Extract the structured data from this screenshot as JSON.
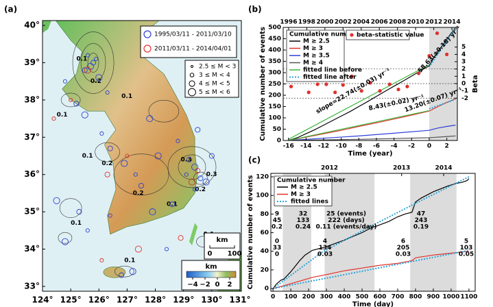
{
  "panel_labels": [
    "(a)",
    "(b)",
    "(c)"
  ],
  "map": {
    "xlim": [
      124,
      131.05
    ],
    "ylim": [
      32.87,
      40.13
    ],
    "xticks": [
      {
        "value": 124,
        "label": "124°"
      },
      {
        "value": 125,
        "label": "125°"
      },
      {
        "value": 126,
        "label": "126°"
      },
      {
        "value": 127,
        "label": "127°"
      },
      {
        "value": 128,
        "label": "128°"
      },
      {
        "value": 129,
        "label": "129°"
      },
      {
        "value": 130,
        "label": "130°"
      },
      {
        "value": 131,
        "label": "131°"
      }
    ],
    "yticks": [
      {
        "value": 33,
        "label": "33°"
      },
      {
        "value": 34,
        "label": "34°"
      },
      {
        "value": 35,
        "label": "35°"
      },
      {
        "value": 36,
        "label": "36°"
      },
      {
        "value": 37,
        "label": "37°"
      },
      {
        "value": 38,
        "label": "38°"
      },
      {
        "value": 39,
        "label": "39°"
      },
      {
        "value": 40,
        "label": "40°"
      }
    ],
    "series": [
      {
        "name": "1995/03/11 - 2011/03/10",
        "color": "#2b3fd6",
        "lon": [
          125.6,
          125.8,
          125.7,
          125.9,
          125.5,
          126.0,
          126.3,
          125.2,
          125.5,
          126.1,
          126.4,
          126.9,
          127.3,
          127.5,
          128.1,
          128.8,
          129.2,
          129.4,
          129.1,
          129.6,
          129.8,
          129.4,
          128.6,
          127.9,
          126.4,
          125.3,
          124.8,
          125.6,
          126.8,
          127.2,
          128.4,
          129.5,
          127.8,
          124.8,
          130.0,
          124.5
        ],
        "lat": [
          39.2,
          39.0,
          38.9,
          39.1,
          38.8,
          38.6,
          38.2,
          37.9,
          37.6,
          37.1,
          36.7,
          36.3,
          36.0,
          35.7,
          36.5,
          36.9,
          36.4,
          36.2,
          36.0,
          35.9,
          35.8,
          35.6,
          35.2,
          35.0,
          34.9,
          35.0,
          34.2,
          34.5,
          33.3,
          33.4,
          34.0,
          37.2,
          37.5,
          38.5,
          36.5,
          35.3
        ]
      },
      {
        "name": "2011/03/11 - 2014/04/01",
        "color": "#e0302a",
        "lon": [
          125.0,
          126.3,
          125.6,
          127.0,
          129.5,
          129.3,
          124.4,
          128.9,
          127.4,
          126.1
        ],
        "lat": [
          38.0,
          36.0,
          38.8,
          36.5,
          36.1,
          35.8,
          37.5,
          34.3,
          34.0,
          33.7
        ]
      }
    ],
    "magnitude_legend": [
      "2.5 ≤ M < 3",
      "3 ≤ M < 4",
      "4 ≤ M < 5",
      "5 ≤ M < 6"
    ],
    "contour_labels": [
      "0.1",
      "0.2",
      "0.1",
      "0.1",
      "0.2",
      "0.3",
      "0.1",
      "0.2",
      "0.3",
      "0.2",
      "0.1",
      "0.1",
      "0.1",
      "0.1"
    ],
    "scale_bar": {
      "title": "km",
      "ticks": [
        "0",
        "100"
      ]
    },
    "colorbar": {
      "title": "km",
      "lim": [
        -5,
        3
      ],
      "ticks": [
        {
          "value": -4,
          "label": "−4"
        },
        {
          "value": -2,
          "label": "−2"
        },
        0,
        2
      ]
    }
  },
  "chart_data": [
    {
      "type": "line",
      "xlabel": "Time (year)",
      "ylabel": "Cumulative number of events",
      "y2label": "Beta",
      "xlim": [
        -16.6,
        3.2
      ],
      "xticks": [
        -16,
        -14,
        -12,
        -10,
        -8,
        -6,
        -4,
        -2,
        0,
        2
      ],
      "x2lim": [
        1995.4,
        2014.6
      ],
      "x2ticks": [
        1996,
        1998,
        2000,
        2002,
        2004,
        2006,
        2008,
        2010,
        2012,
        2014
      ],
      "ylim": [
        0,
        500
      ],
      "yticks": [
        0,
        50,
        100,
        150,
        200,
        250,
        300,
        350,
        400,
        450,
        500
      ],
      "y2lim": [
        -7.8,
        7.7
      ],
      "y2ticks": [
        -2,
        -1,
        0,
        1,
        2,
        3,
        4,
        5
      ],
      "shaded_intervals": [
        [
          0,
          3.2
        ]
      ],
      "legend_title": "Cumulative number",
      "series": [
        {
          "name": "M ≥ 2.5",
          "color": "#000000",
          "style": "solid",
          "x": [
            -16,
            -15,
            -14,
            -13,
            -12,
            -11,
            -10,
            -9,
            -8,
            -7,
            -6,
            -5,
            -4,
            -3,
            -2,
            -1,
            0,
            0.5,
            1,
            1.5,
            2,
            2.5,
            3
          ],
          "values": [
            0,
            12,
            30,
            48,
            68,
            88,
            108,
            128,
            150,
            172,
            195,
            218,
            240,
            262,
            285,
            308,
            330,
            365,
            395,
            420,
            448,
            475,
            500
          ]
        },
        {
          "name": "M ≥ 3",
          "color": "#e0302a",
          "style": "solid",
          "x": [
            -16,
            -14,
            -12,
            -10,
            -8,
            -6,
            -4,
            -2,
            0,
            1,
            2,
            3
          ],
          "values": [
            0,
            15,
            30,
            45,
            62,
            78,
            95,
            112,
            130,
            150,
            168,
            185
          ]
        },
        {
          "name": "M ≥ 3.5",
          "color": "#2b3fd6",
          "style": "solid",
          "x": [
            -16,
            -12,
            -8,
            -4,
            0,
            1,
            2,
            3
          ],
          "values": [
            0,
            10,
            20,
            32,
            45,
            55,
            62,
            68
          ]
        },
        {
          "name": "M ≥ 4",
          "color": "#555555",
          "style": "solid",
          "x": [
            -16,
            -8,
            0,
            3
          ],
          "values": [
            0,
            5,
            12,
            20
          ]
        },
        {
          "name": "fitted line before",
          "color": "#3cb43c",
          "style": "solid",
          "x": [
            -16,
            0,
            null,
            -16,
            0
          ],
          "values": [
            5,
            335,
            null,
            0,
            132
          ]
        },
        {
          "name": "fitted line after",
          "color": "#29a3d9",
          "style": "dotted",
          "x": [
            0,
            3,
            null,
            0,
            3
          ],
          "values": [
            325,
            500,
            null,
            140,
            182
          ]
        }
      ],
      "beta": {
        "name": "beta-statistic value",
        "color": "#e0302a",
        "axis": "y2",
        "x": [
          -15.7,
          -14.8,
          -13.7,
          -12.7,
          -11.7,
          -10.7,
          -9.8,
          -8.8,
          -7.7,
          -6.7,
          -5.6,
          -4.5,
          -3.5,
          -2.5,
          -1.2,
          0,
          0.9,
          2.0
        ],
        "values": [
          -0.4,
          0.8,
          -1.2,
          -0.1,
          -0.1,
          -1.2,
          -0.2,
          1.0,
          -1.0,
          0.1,
          -1.0,
          -0.1,
          -0.8,
          -0.4,
          1.4,
          3.8,
          6.9,
          4.0
        ]
      },
      "beta_reference_lines": [
        2,
        0,
        -2
      ],
      "annotations": [
        {
          "text": "slope=22.74(±0.03) yr⁻¹",
          "color": "#3cb43c"
        },
        {
          "text": "58.63(±0.18) yr⁻¹",
          "color": "#29a3d9"
        },
        {
          "text": "8.43(±0.02) yr⁻¹",
          "color": "#3cb43c"
        },
        {
          "text": "13.20(±0.07) yr⁻¹",
          "color": "#29a3d9"
        }
      ]
    },
    {
      "type": "line",
      "xlabel": "Time (day)",
      "ylabel": "Cumulative number of events",
      "xlim": [
        -12,
        1135
      ],
      "xticks": [
        0,
        100,
        200,
        300,
        400,
        500,
        600,
        700,
        800,
        900,
        1000,
        1100
      ],
      "x2ticks": [
        {
          "value": 317,
          "label": "2012"
        },
        {
          "value": 722,
          "label": "2013"
        },
        {
          "value": 958,
          "label": "2014"
        }
      ],
      "ylim": [
        -2.9,
        123.7
      ],
      "yticks": [
        0,
        20,
        40,
        60,
        80,
        100,
        120
      ],
      "shaded_intervals": [
        [
          55,
          215
        ],
        [
          290,
          570
        ],
        [
          770,
          1030
        ]
      ],
      "legend_title": "Cumulative number",
      "series": [
        {
          "name": "M ≥ 2.5",
          "color": "#000000",
          "style": "solid",
          "x": [
            0,
            20,
            45,
            60,
            100,
            150,
            180,
            220,
            300,
            400,
            500,
            560,
            580,
            650,
            700,
            740,
            780,
            800,
            830,
            900,
            980,
            1030,
            1060,
            1090,
            1100
          ],
          "values": [
            0,
            5,
            9,
            10,
            18,
            30,
            36,
            41,
            45,
            52,
            60,
            66,
            67,
            72,
            77,
            80,
            82,
            93,
            97,
            104,
            110,
            113,
            114,
            116,
            118
          ]
        },
        {
          "name": "M ≥ 3",
          "color": "#e0302a",
          "style": "solid",
          "x": [
            0,
            60,
            150,
            220,
            300,
            400,
            500,
            600,
            700,
            780,
            800,
            900,
            1000,
            1050,
            1100
          ],
          "values": [
            0,
            3,
            8,
            12,
            15,
            19,
            22,
            25,
            27,
            30,
            33,
            36,
            38,
            39,
            40
          ]
        },
        {
          "name": "fitted lines",
          "color": "#29a3d9",
          "style": "dotted",
          "x": [
            0,
            275,
            550,
            825,
            1100,
            null,
            0,
            1100
          ],
          "values": [
            0,
            39,
            67,
            94,
            120,
            null,
            0,
            41
          ]
        }
      ],
      "interval_stats": [
        [
          "9",
          "45",
          "0.2"
        ],
        [
          "32",
          "133",
          "0.24"
        ],
        [
          "25 (events)",
          "222 (days)",
          "0.11 (events/day)"
        ],
        [
          "47",
          "243",
          "0.19"
        ],
        [
          "0",
          "33",
          "0"
        ],
        [
          "4",
          "134",
          "0.03"
        ],
        [
          "6",
          "205",
          "0.03"
        ],
        [
          "5",
          "103",
          "0.05"
        ]
      ]
    }
  ]
}
